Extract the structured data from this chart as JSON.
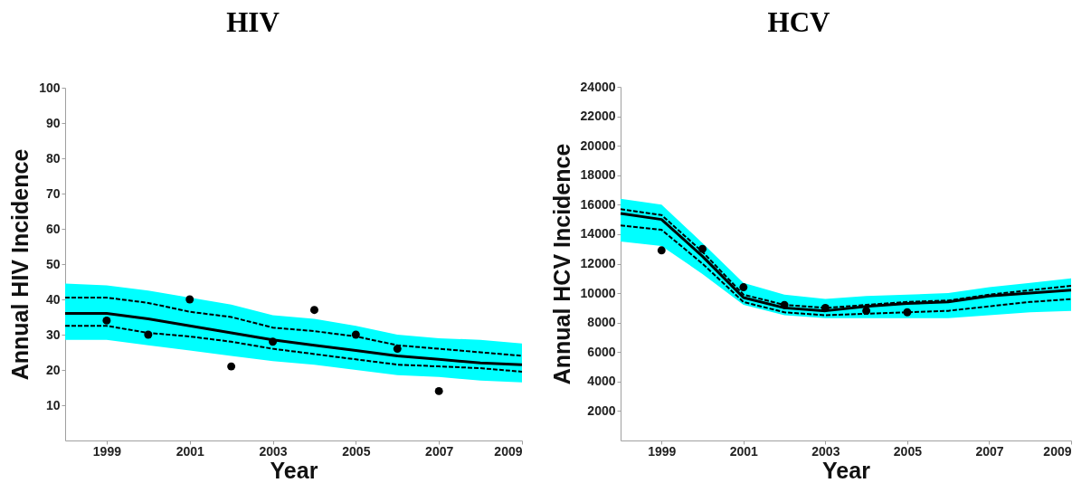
{
  "chart_data": [
    {
      "type": "line",
      "title": "HIV",
      "xlabel": "Year",
      "ylabel": "Annual HIV Incidence",
      "xlim": [
        1998,
        2009
      ],
      "xticks": [
        1999,
        2001,
        2003,
        2005,
        2007,
        2009
      ],
      "ylim": [
        0,
        100
      ],
      "yticks": [
        10,
        20,
        30,
        40,
        50,
        60,
        70,
        80,
        90,
        100
      ],
      "series": [
        {
          "color": "#000000",
          "line_style": "solid",
          "x": [
            1998,
            1999,
            2000,
            2001,
            2002,
            2003,
            2004,
            2005,
            2006,
            2007,
            2008,
            2009
          ],
          "values": [
            36,
            36,
            34.5,
            32.5,
            30.5,
            28.5,
            27,
            25.5,
            24,
            23,
            22,
            21.5
          ],
          "lower": [
            28.5,
            28.5,
            27,
            25.5,
            24,
            22.5,
            21.5,
            20,
            18.5,
            18,
            17,
            16.5
          ],
          "upper": [
            44.5,
            44,
            42.5,
            40.5,
            38.5,
            35.5,
            34.5,
            32.5,
            30,
            29,
            28.5,
            27.5
          ]
        },
        {
          "color": "#000000",
          "line_style": "dashed",
          "x": [
            1998,
            1999,
            2000,
            2001,
            2002,
            2003,
            2004,
            2005,
            2006,
            2007,
            2008,
            2009
          ],
          "values": [
            40.5,
            40.5,
            39,
            36.5,
            35,
            32,
            31,
            29.5,
            27,
            26,
            25,
            24
          ]
        },
        {
          "color": "#000000",
          "line_style": "dashed",
          "x": [
            1998,
            1999,
            2000,
            2001,
            2002,
            2003,
            2004,
            2005,
            2006,
            2007,
            2008,
            2009
          ],
          "values": [
            32.5,
            32.5,
            30.5,
            29.5,
            28,
            26,
            24.5,
            23,
            21.5,
            21,
            20.5,
            19.5
          ]
        },
        {
          "type": "scatter",
          "color": "#000000",
          "marker": "circle",
          "x": [
            1999,
            2000,
            2001,
            2002,
            2003,
            2004,
            2005,
            2006,
            2007
          ],
          "values": [
            34,
            30,
            40,
            21,
            28,
            37,
            30,
            26,
            14
          ]
        }
      ]
    },
    {
      "type": "line",
      "title": "HCV",
      "xlabel": "Year",
      "ylabel": "Annual HCV Incidence",
      "xlim": [
        1998,
        2009
      ],
      "xticks": [
        1999,
        2001,
        2003,
        2005,
        2007,
        2009
      ],
      "ylim": [
        0,
        24000
      ],
      "yticks": [
        2000,
        4000,
        6000,
        8000,
        10000,
        12000,
        14000,
        16000,
        18000,
        20000,
        22000,
        24000
      ],
      "series": [
        {
          "color": "#000000",
          "line_style": "solid",
          "x": [
            1998,
            1999,
            2000,
            2001,
            2002,
            2003,
            2004,
            2005,
            2006,
            2007,
            2008,
            2009
          ],
          "values": [
            15400,
            15000,
            12500,
            9700,
            9000,
            8800,
            9100,
            9300,
            9400,
            9800,
            10000,
            10200
          ],
          "lower": [
            13500,
            13200,
            11300,
            9200,
            8500,
            8300,
            8300,
            8300,
            8300,
            8500,
            8700,
            8800
          ],
          "upper": [
            16400,
            16000,
            13400,
            10700,
            9900,
            9600,
            9800,
            9900,
            10000,
            10400,
            10700,
            11000
          ]
        },
        {
          "color": "#000000",
          "line_style": "dashed",
          "x": [
            1998,
            1999,
            2000,
            2001,
            2002,
            2003,
            2004,
            2005,
            2006,
            2007,
            2008,
            2009
          ],
          "values": [
            15700,
            15300,
            12800,
            9900,
            9200,
            9000,
            9200,
            9400,
            9500,
            9900,
            10200,
            10500
          ]
        },
        {
          "color": "#000000",
          "line_style": "dashed",
          "x": [
            1998,
            1999,
            2000,
            2001,
            2002,
            2003,
            2004,
            2005,
            2006,
            2007,
            2008,
            2009
          ],
          "values": [
            14600,
            14300,
            12000,
            9400,
            8700,
            8500,
            8600,
            8700,
            8800,
            9100,
            9400,
            9600
          ]
        },
        {
          "type": "scatter",
          "color": "#000000",
          "marker": "circle",
          "x": [
            1999,
            2000,
            2001,
            2002,
            2003,
            2004,
            2005
          ],
          "values": [
            12900,
            13000,
            10400,
            9200,
            9000,
            8800,
            8700
          ]
        }
      ]
    }
  ]
}
